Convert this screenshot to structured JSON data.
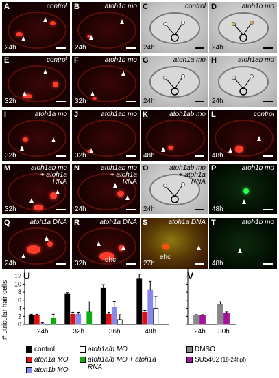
{
  "panels": [
    {
      "id": "A",
      "type": "fluor",
      "title": "control",
      "time": "24h"
    },
    {
      "id": "B",
      "type": "fluor",
      "title": "atoh1b mo",
      "time": "24h"
    },
    {
      "id": "C",
      "type": "dic",
      "title": "control",
      "time": "24h"
    },
    {
      "id": "D",
      "type": "dic",
      "title": "atoh1b mo",
      "time": "24h"
    },
    {
      "id": "E",
      "type": "fluor",
      "title": "control",
      "time": "32h"
    },
    {
      "id": "F",
      "type": "fluor",
      "title": "atoh1b mo",
      "time": "32h"
    },
    {
      "id": "G",
      "type": "dic",
      "title": "atoh1a mo",
      "time": "24h"
    },
    {
      "id": "H",
      "type": "dic",
      "title": "atoh1ab mo",
      "time": "24h"
    },
    {
      "id": "I",
      "type": "fluor",
      "title": "atoh1a mo",
      "time": "32h"
    },
    {
      "id": "J",
      "type": "fluor",
      "title": "atoh1ab mo",
      "time": "32h"
    },
    {
      "id": "K",
      "type": "fluor",
      "title": "atoh1ab mo",
      "time": "48h"
    },
    {
      "id": "L",
      "type": "fluor",
      "title": "control",
      "time": "48h"
    },
    {
      "id": "M",
      "type": "fluor",
      "title": "atoh1ab mo + atoh1a RNA",
      "time": "32h"
    },
    {
      "id": "N",
      "type": "fluor",
      "title": "atoh1ab mo + atoh1a RNA",
      "time": "24h"
    },
    {
      "id": "O",
      "type": "dic",
      "title": "atoh1ab mo + atoh1a RNA",
      "time": "24h"
    },
    {
      "id": "P",
      "type": "green",
      "title": "atoh1b mo",
      "time": "48h"
    },
    {
      "id": "Q",
      "type": "fluor",
      "title": "atoh1a DNA",
      "time": "24h"
    },
    {
      "id": "R",
      "type": "fluor",
      "title": "atoh1a DNA",
      "time": "32h",
      "annotation": "dhc"
    },
    {
      "id": "S",
      "type": "yg",
      "title": "atoh1a DNA",
      "time": "27h",
      "annotation": "ehc"
    },
    {
      "id": "T",
      "type": "green",
      "title": "atoh1b mo",
      "time": "48h"
    }
  ],
  "charts": {
    "U": {
      "label": "U",
      "ylabel": "# utricular hair cells",
      "ylim": [
        0,
        14
      ],
      "yticks": [
        0,
        2,
        4,
        6,
        8,
        10,
        12
      ],
      "categories": [
        "24h",
        "32h",
        "36h",
        "48h"
      ],
      "legend": [
        {
          "name": "control",
          "color": "#000000"
        },
        {
          "name": "atoh1a MO",
          "color": "#dd1111"
        },
        {
          "name": "atoh1b MO",
          "color": "#8888ee"
        },
        {
          "name": "atoh1a/b MO",
          "color": "#ffffff"
        },
        {
          "name": "atoh1a/b MO + atoh1a RNA",
          "color": "#11aa11"
        }
      ]
    },
    "V": {
      "label": "V",
      "ylim": [
        0,
        14
      ],
      "yticks": [
        0,
        2,
        4,
        6,
        8,
        10,
        12
      ],
      "categories": [
        "24h",
        "30h"
      ],
      "legend": [
        {
          "name": "DMSO",
          "color": "#888888"
        },
        {
          "name": "SU5402",
          "note": "(18-24hpf)",
          "color": "#a0149a"
        }
      ]
    }
  },
  "chart_data": [
    {
      "type": "bar",
      "categories": [
        "24h",
        "32h",
        "36h",
        "48h"
      ],
      "ylabel": "# utricular hair cells",
      "ylim": [
        0,
        14
      ],
      "series": [
        {
          "name": "control",
          "color": "#000000",
          "values": [
            2.2,
            7.5,
            9.0,
            11.3
          ],
          "errors": [
            0.3,
            0.4,
            0.9,
            1.2
          ]
        },
        {
          "name": "atoh1a MO",
          "color": "#dd1111",
          "values": [
            2.2,
            2.5,
            2.5,
            3.0
          ],
          "errors": [
            0.3,
            0.5,
            0.5,
            0.5
          ]
        },
        {
          "name": "atoh1b MO",
          "color": "#8888ee",
          "values": [
            0.2,
            2.5,
            4.2,
            8.5
          ],
          "errors": [
            0.2,
            0.5,
            1.5,
            2.2
          ]
        },
        {
          "name": "atoh1a/b MO",
          "color": "#ffffff",
          "values": [
            0.0,
            0.0,
            1.2,
            4.0
          ],
          "errors": [
            0.0,
            0.0,
            1.2,
            3.0
          ]
        },
        {
          "name": "atoh1a/b MO + atoh1a RNA",
          "color": "#11aa11",
          "values": [
            1.5,
            3.1,
            0,
            0
          ],
          "errors": [
            1.0,
            2.5,
            0,
            0
          ]
        }
      ]
    },
    {
      "type": "bar",
      "categories": [
        "24h",
        "30h"
      ],
      "ylim": [
        0,
        14
      ],
      "series": [
        {
          "name": "DMSO",
          "color": "#888888",
          "values": [
            2.2,
            4.9
          ],
          "errors": [
            0.2,
            0.7
          ]
        },
        {
          "name": "SU5402 (18-24hpf)",
          "color": "#a0149a",
          "values": [
            2.2,
            2.7
          ],
          "errors": [
            0.2,
            0.4
          ]
        }
      ]
    }
  ]
}
